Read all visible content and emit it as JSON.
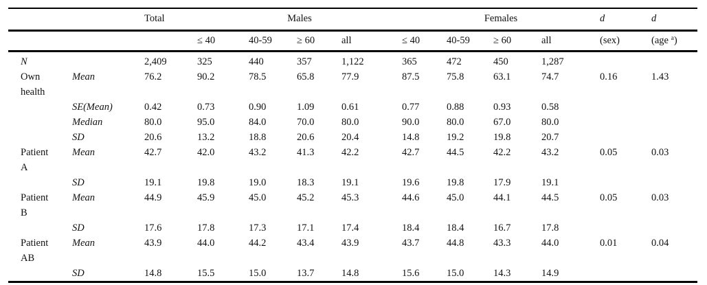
{
  "header": {
    "total_label": "Total",
    "males_label": "Males",
    "females_label": "Females",
    "d_label": "d",
    "sex_sub": "(sex)",
    "age_sub_pre": "(age ",
    "age_sub_sup": "a",
    "age_sub_post": ")",
    "age_columns": [
      "≤ 40",
      "40-59",
      "≥ 60",
      "all"
    ]
  },
  "rows": [
    {
      "group": "N",
      "group_italic": true,
      "stat": "",
      "values": [
        "2,409",
        "325",
        "440",
        "357",
        "1,122",
        "365",
        "472",
        "450",
        "1,287",
        "",
        ""
      ]
    },
    {
      "group": "Own health",
      "stat": "Mean",
      "values": [
        "76.2",
        "90.2",
        "78.5",
        "65.8",
        "77.9",
        "87.5",
        "75.8",
        "63.1",
        "74.7",
        "0.16",
        "1.43"
      ]
    },
    {
      "group": "",
      "stat": "SE(Mean)",
      "values": [
        "0.42",
        "0.73",
        "0.90",
        "1.09",
        "0.61",
        "0.77",
        "0.88",
        "0.93",
        "0.58",
        "",
        ""
      ]
    },
    {
      "group": "",
      "stat": "Median",
      "values": [
        "80.0",
        "95.0",
        "84.0",
        "70.0",
        "80.0",
        "90.0",
        "80.0",
        "67.0",
        "80.0",
        "",
        ""
      ]
    },
    {
      "group": "",
      "stat": "SD",
      "values": [
        "20.6",
        "13.2",
        "18.8",
        "20.6",
        "20.4",
        "14.8",
        "19.2",
        "19.8",
        "20.7",
        "",
        ""
      ]
    },
    {
      "group": "Patient A",
      "stat": "Mean",
      "values": [
        "42.7",
        "42.0",
        "43.2",
        "41.3",
        "42.2",
        "42.7",
        "44.5",
        "42.2",
        "43.2",
        "0.05",
        "0.03"
      ]
    },
    {
      "group": "",
      "stat": "SD",
      "values": [
        "19.1",
        "19.8",
        "19.0",
        "18.3",
        "19.1",
        "19.6",
        "19.8",
        "17.9",
        "19.1",
        "",
        ""
      ]
    },
    {
      "group": "Patient B",
      "stat": "Mean",
      "values": [
        "44.9",
        "45.9",
        "45.0",
        "45.2",
        "45.3",
        "44.6",
        "45.0",
        "44.1",
        "44.5",
        "0.05",
        "0.03"
      ]
    },
    {
      "group": "",
      "stat": "SD",
      "values": [
        "17.6",
        "17.8",
        "17.3",
        "17.1",
        "17.4",
        "18.4",
        "18.4",
        "16.7",
        "17.8",
        "",
        ""
      ]
    },
    {
      "group": "Patient AB",
      "stat": "Mean",
      "values": [
        "43.9",
        "44.0",
        "44.2",
        "43.4",
        "43.9",
        "43.7",
        "44.8",
        "43.3",
        "44.0",
        "0.01",
        "0.04"
      ]
    },
    {
      "group": "",
      "stat": "SD",
      "values": [
        "14.8",
        "15.5",
        "15.0",
        "13.7",
        "14.8",
        "15.6",
        "15.0",
        "14.3",
        "14.9",
        "",
        ""
      ]
    }
  ]
}
